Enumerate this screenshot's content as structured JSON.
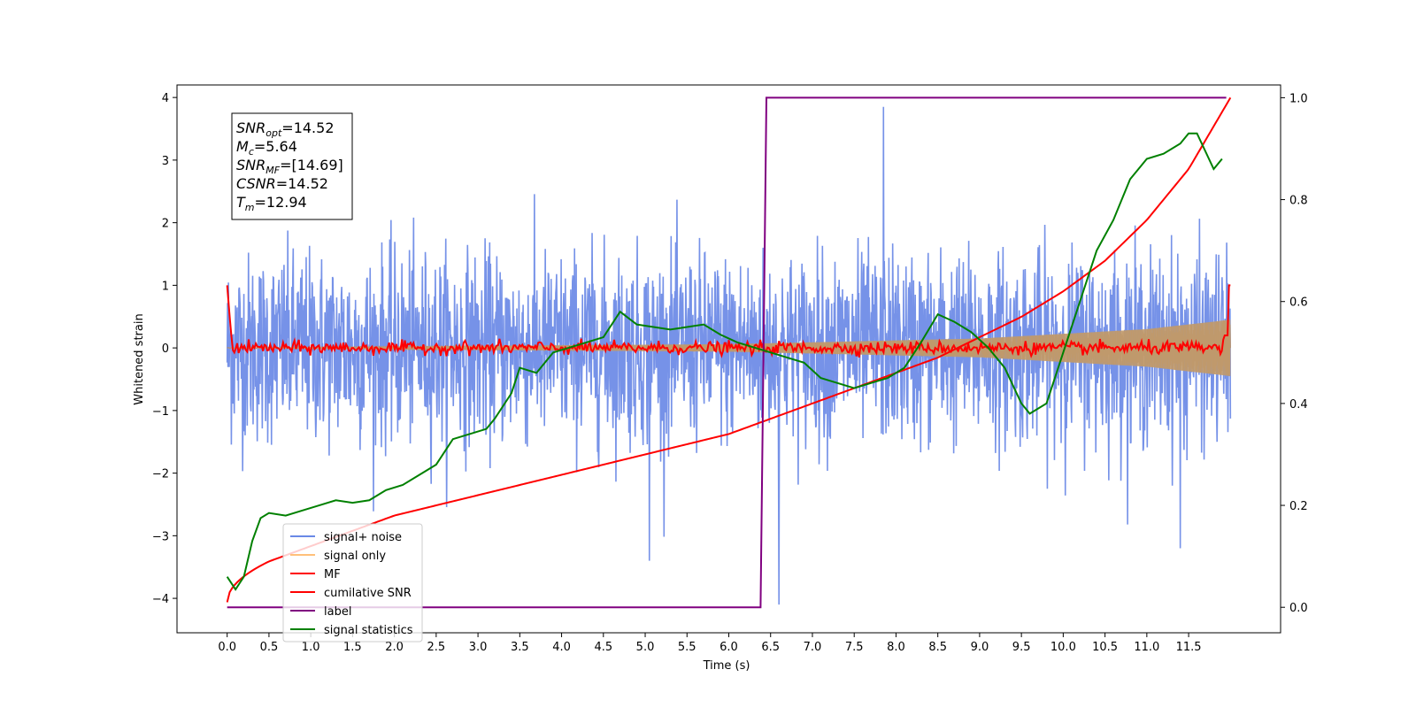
{
  "chart_data": {
    "type": "line",
    "xlabel": "Time (s)",
    "ylabel_left": "Whitened strain",
    "ylabel_right": "",
    "xlim": [
      -0.6,
      12.6
    ],
    "ylim_left": [
      -4.55,
      4.2
    ],
    "ylim_right": [
      -0.05,
      1.025
    ],
    "x_ticks": [
      "0.0",
      "0.5",
      "1.0",
      "1.5",
      "2.0",
      "2.5",
      "3.0",
      "3.5",
      "4.0",
      "4.5",
      "5.0",
      "5.5",
      "6.0",
      "6.5",
      "7.0",
      "7.5",
      "8.0",
      "8.5",
      "9.0",
      "9.5",
      "10.0",
      "10.5",
      "11.0",
      "11.5"
    ],
    "y_ticks_left": [
      "4",
      "3",
      "2",
      "1",
      "0",
      "−1",
      "−2",
      "−3",
      "−4"
    ],
    "y_ticks_right": [
      "1.0",
      "0.8",
      "0.6",
      "0.4",
      "0.2",
      "0.0"
    ],
    "grid": false,
    "legend_position": "lower-left",
    "info_box": {
      "lines": [
        {
          "sym": "SNR",
          "sub": "opt",
          "value": "=14.52"
        },
        {
          "sym": "M",
          "sub": "c",
          "value": "=5.64"
        },
        {
          "sym": "SNR",
          "sub": "MF",
          "value": "=[14.69]"
        },
        {
          "sym": "CSNR",
          "sub": "",
          "value": "=14.52"
        },
        {
          "sym": "T",
          "sub": "m",
          "value": "=12.94"
        }
      ]
    },
    "series": [
      {
        "name": "signal+ noise",
        "axis": "left",
        "color": "#6a89e6",
        "description_kind": "noise",
        "x_range": [
          0.0,
          12.0
        ],
        "amplitude_std": 0.75,
        "extremes": [
          [
            7.85,
            3.85
          ],
          [
            6.6,
            -4.1
          ],
          [
            11.4,
            -3.2
          ],
          [
            5.05,
            -3.4
          ]
        ]
      },
      {
        "name": "signal only",
        "axis": "left",
        "color": "#ffc07a",
        "x_range": [
          0.0,
          12.0
        ],
        "envelope": [
          [
            0.0,
            0.005
          ],
          [
            6.0,
            0.06
          ],
          [
            9.0,
            0.15
          ],
          [
            11.0,
            0.3
          ],
          [
            12.0,
            0.45
          ]
        ]
      },
      {
        "name": "MF",
        "axis": "left",
        "color": "#ff0000",
        "x": [
          0.0,
          0.03,
          0.06,
          12.0
        ],
        "y": [
          1.0,
          0.5,
          0.05,
          1.0
        ]
      },
      {
        "name": "cumilative SNR",
        "axis": "right",
        "color": "#ff0000",
        "x": [
          0.0,
          0.5,
          1.0,
          1.5,
          2.0,
          2.5,
          3.0,
          3.5,
          4.0,
          4.5,
          5.0,
          5.5,
          6.0,
          6.5,
          7.0,
          7.5,
          8.0,
          8.5,
          9.0,
          9.5,
          10.0,
          10.5,
          11.0,
          11.5,
          12.0
        ],
        "y": [
          0.01,
          0.09,
          0.12,
          0.15,
          0.18,
          0.2,
          0.22,
          0.24,
          0.26,
          0.28,
          0.3,
          0.32,
          0.34,
          0.37,
          0.4,
          0.43,
          0.46,
          0.49,
          0.53,
          0.57,
          0.62,
          0.68,
          0.76,
          0.86,
          1.0
        ]
      },
      {
        "name": "label",
        "axis": "right",
        "color": "#800080",
        "x": [
          0.0,
          6.38,
          6.45,
          11.95
        ],
        "y": [
          0.0,
          0.0,
          1.0,
          1.0
        ]
      },
      {
        "name": "signal statistics",
        "axis": "right",
        "color": "#008000",
        "x": [
          0.0,
          0.1,
          0.2,
          0.3,
          0.4,
          0.5,
          0.7,
          0.9,
          1.1,
          1.3,
          1.5,
          1.7,
          1.9,
          2.1,
          2.3,
          2.5,
          2.7,
          2.9,
          3.1,
          3.2,
          3.4,
          3.5,
          3.7,
          3.9,
          4.1,
          4.3,
          4.5,
          4.7,
          4.9,
          5.1,
          5.3,
          5.5,
          5.7,
          5.9,
          6.1,
          6.3,
          6.5,
          6.7,
          6.9,
          7.1,
          7.3,
          7.5,
          7.7,
          7.9,
          8.1,
          8.3,
          8.5,
          8.7,
          8.9,
          9.1,
          9.3,
          9.5,
          9.6,
          9.8,
          10.0,
          10.2,
          10.4,
          10.6,
          10.8,
          11.0,
          11.2,
          11.4,
          11.5,
          11.6,
          11.8,
          11.9
        ],
        "y": [
          0.06,
          0.035,
          0.06,
          0.13,
          0.175,
          0.185,
          0.18,
          0.19,
          0.2,
          0.21,
          0.205,
          0.21,
          0.23,
          0.24,
          0.26,
          0.28,
          0.33,
          0.34,
          0.35,
          0.37,
          0.42,
          0.47,
          0.46,
          0.5,
          0.51,
          0.52,
          0.53,
          0.58,
          0.555,
          0.55,
          0.545,
          0.55,
          0.555,
          0.535,
          0.52,
          0.51,
          0.5,
          0.49,
          0.48,
          0.45,
          0.44,
          0.43,
          0.44,
          0.45,
          0.47,
          0.52,
          0.575,
          0.56,
          0.54,
          0.51,
          0.47,
          0.4,
          0.38,
          0.4,
          0.5,
          0.6,
          0.7,
          0.76,
          0.84,
          0.88,
          0.89,
          0.91,
          0.93,
          0.93,
          0.86,
          0.88
        ]
      }
    ]
  }
}
